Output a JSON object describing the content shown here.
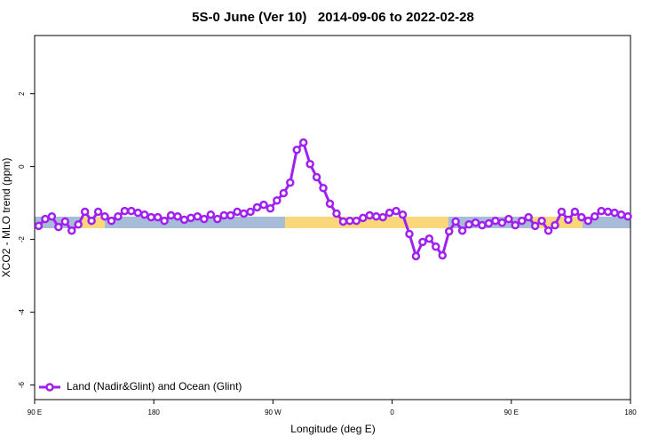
{
  "chart_data": {
    "type": "line",
    "title": "5S-0 June (Ver 10)   2014-09-06 to 2022-02-28",
    "x_label": "Longitude (deg E)",
    "y_label": "XCO2 - MLO trend (ppm)",
    "xlim": [
      90,
      540
    ],
    "xticks": [
      {
        "value": 90,
        "label": "90 E"
      },
      {
        "value": 180,
        "label": "180"
      },
      {
        "value": 270,
        "label": "90 W"
      },
      {
        "value": 360,
        "label": "0"
      },
      {
        "value": 450,
        "label": "90 E"
      },
      {
        "value": 540,
        "label": "180"
      }
    ],
    "ylim": [
      -6.4,
      3.6
    ],
    "yticks": [
      -6,
      -4,
      -2,
      0,
      2
    ],
    "legend": "bottom-left",
    "x": [
      93,
      98,
      103,
      108,
      113,
      118,
      123,
      128,
      133,
      138,
      143,
      148,
      153,
      158,
      163,
      168,
      173,
      178,
      183,
      188,
      193,
      198,
      203,
      208,
      213,
      218,
      223,
      228,
      233,
      238,
      243,
      248,
      253,
      258,
      263,
      268,
      273,
      278,
      283,
      288,
      293,
      298,
      303,
      308,
      313,
      318,
      323,
      328,
      333,
      338,
      343,
      348,
      353,
      358,
      363,
      368,
      373,
      378,
      383,
      388,
      393,
      398,
      403,
      408,
      413,
      418,
      423,
      428,
      433,
      438,
      443,
      448,
      453,
      458,
      463,
      468,
      473,
      478,
      483,
      488,
      493,
      498,
      503,
      508,
      513,
      518,
      523,
      528,
      533,
      538
    ],
    "series": [
      {
        "name": "Land (Nadir&Glint) and Ocean (Glint)",
        "color": "#a020f0",
        "values": [
          -1.63,
          -1.44,
          -1.37,
          -1.66,
          -1.51,
          -1.76,
          -1.59,
          -1.24,
          -1.49,
          -1.24,
          -1.37,
          -1.49,
          -1.37,
          -1.22,
          -1.22,
          -1.27,
          -1.32,
          -1.39,
          -1.39,
          -1.49,
          -1.34,
          -1.37,
          -1.46,
          -1.41,
          -1.37,
          -1.44,
          -1.32,
          -1.44,
          -1.34,
          -1.34,
          -1.24,
          -1.29,
          -1.24,
          -1.12,
          -1.05,
          -1.15,
          -0.93,
          -0.73,
          -0.44,
          0.46,
          0.66,
          0.07,
          -0.29,
          -0.59,
          -1.02,
          -1.29,
          -1.51,
          -1.49,
          -1.49,
          -1.41,
          -1.34,
          -1.37,
          -1.39,
          -1.27,
          -1.22,
          -1.32,
          -1.85,
          -2.46,
          -2.07,
          -1.98,
          -2.2,
          -2.44,
          -1.78,
          -1.51,
          -1.76,
          -1.59,
          -1.54,
          -1.61,
          -1.56,
          -1.49,
          -1.54,
          -1.44,
          -1.61,
          -1.49,
          -1.39,
          -1.63,
          -1.49,
          -1.76,
          -1.61,
          -1.24,
          -1.46,
          -1.24,
          -1.39,
          -1.49,
          -1.37,
          -1.22,
          -1.24,
          -1.27,
          -1.32,
          -1.37
        ]
      }
    ]
  }
}
